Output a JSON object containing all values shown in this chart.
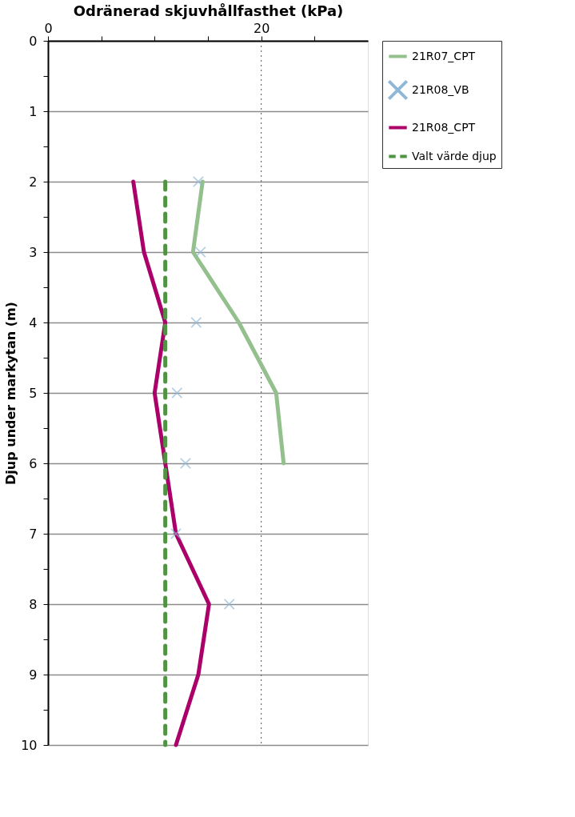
{
  "chart_data": {
    "type": "line",
    "title": "Odränerad skjuvhållfasthet (kPa)",
    "ylabel": "Djup under markytan (m)",
    "xlim": [
      0,
      30
    ],
    "xticks": [
      0,
      {
        "value": 5,
        "label": null
      },
      {
        "value": 10,
        "label": null
      },
      {
        "value": 15,
        "label": null
      },
      20,
      {
        "value": 25,
        "label": null
      }
    ],
    "ylim": [
      10,
      0
    ],
    "yticks": [
      0,
      {
        "value": 0.5,
        "label": null
      },
      1,
      {
        "value": 1.5,
        "label": null
      },
      2,
      {
        "value": 2.5,
        "label": null
      },
      3,
      {
        "value": 3.5,
        "label": null
      },
      4,
      {
        "value": 4.5,
        "label": null
      },
      5,
      {
        "value": 5.5,
        "label": null
      },
      6,
      {
        "value": 6.5,
        "label": null
      },
      7,
      {
        "value": 7.5,
        "label": null
      },
      8,
      {
        "value": 8.5,
        "label": null
      },
      9,
      {
        "value": 9.5,
        "label": null
      },
      10
    ],
    "grid": "y",
    "legend": "right",
    "ref_lines": [
      {
        "axis": "x",
        "value": 20,
        "color": "#555555",
        "line_style": "dotted"
      }
    ],
    "series": [
      {
        "name": "21R07_CPT",
        "color": "#93c08d",
        "line_style": "solid",
        "marker": "none",
        "x": [
          14.5,
          13.6,
          17.9,
          21.4,
          22.1
        ],
        "values": [
          2,
          3,
          4,
          5,
          6
        ]
      },
      {
        "name": "21R08_VB",
        "type": "scatter",
        "color": "#8fb8d8",
        "marker": "cross",
        "x": [
          14.1,
          14.3,
          13.9,
          12.1,
          12.9,
          12.0,
          17.0
        ],
        "values": [
          2,
          3,
          4,
          5,
          6,
          7,
          8
        ]
      },
      {
        "name": "21R08_CPT",
        "color": "#ab006a",
        "line_style": "solid",
        "marker": "none",
        "x": [
          8.0,
          9.0,
          11.0,
          10.0,
          11.0,
          12.0,
          15.1,
          14.1,
          12.0
        ],
        "values": [
          2,
          3,
          4,
          5,
          6,
          7,
          8,
          9,
          10
        ]
      },
      {
        "name": "Valt värde djup",
        "color": "#4f9343",
        "line_style": "dashed",
        "marker": "none",
        "x": [
          11,
          11
        ],
        "values": [
          2,
          10
        ]
      }
    ]
  }
}
